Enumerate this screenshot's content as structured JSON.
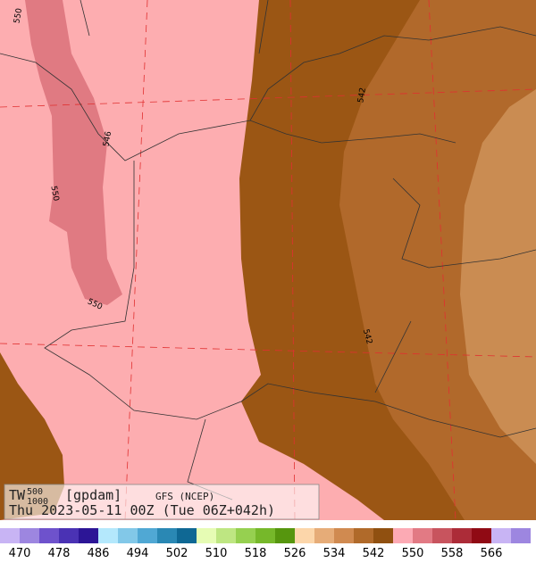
{
  "map": {
    "contour_labels": [
      "550",
      "546",
      "550",
      "550",
      "542",
      "542"
    ],
    "legend": {
      "variable": "TW",
      "superscript": "500",
      "subscript": "1000",
      "unit": "[gpdam]",
      "model": "GFS (NCEP)",
      "valid": "Thu 2023-05-11 00Z (Tue 06Z+042h)"
    },
    "colorbar": {
      "labels": [
        470,
        478,
        486,
        494,
        502,
        510,
        518,
        526,
        534,
        542,
        550,
        558,
        566
      ],
      "colors": [
        "#c8b4f4",
        "#9d86e0",
        "#6e52cc",
        "#4a32b4",
        "#2c1596",
        "#b4e8fc",
        "#82c8e8",
        "#50a8d4",
        "#2a88b4",
        "#0f6894",
        "#e6fcb4",
        "#bee682",
        "#96d050",
        "#76b82a",
        "#56960e",
        "#fcd6aa",
        "#e6ac78",
        "#d08a50",
        "#b06a2a",
        "#905010",
        "#fcaab4",
        "#e27a84",
        "#c8545e",
        "#ac2c38",
        "#900a14",
        "#c8b4f4",
        "#9d86e0"
      ]
    }
  }
}
